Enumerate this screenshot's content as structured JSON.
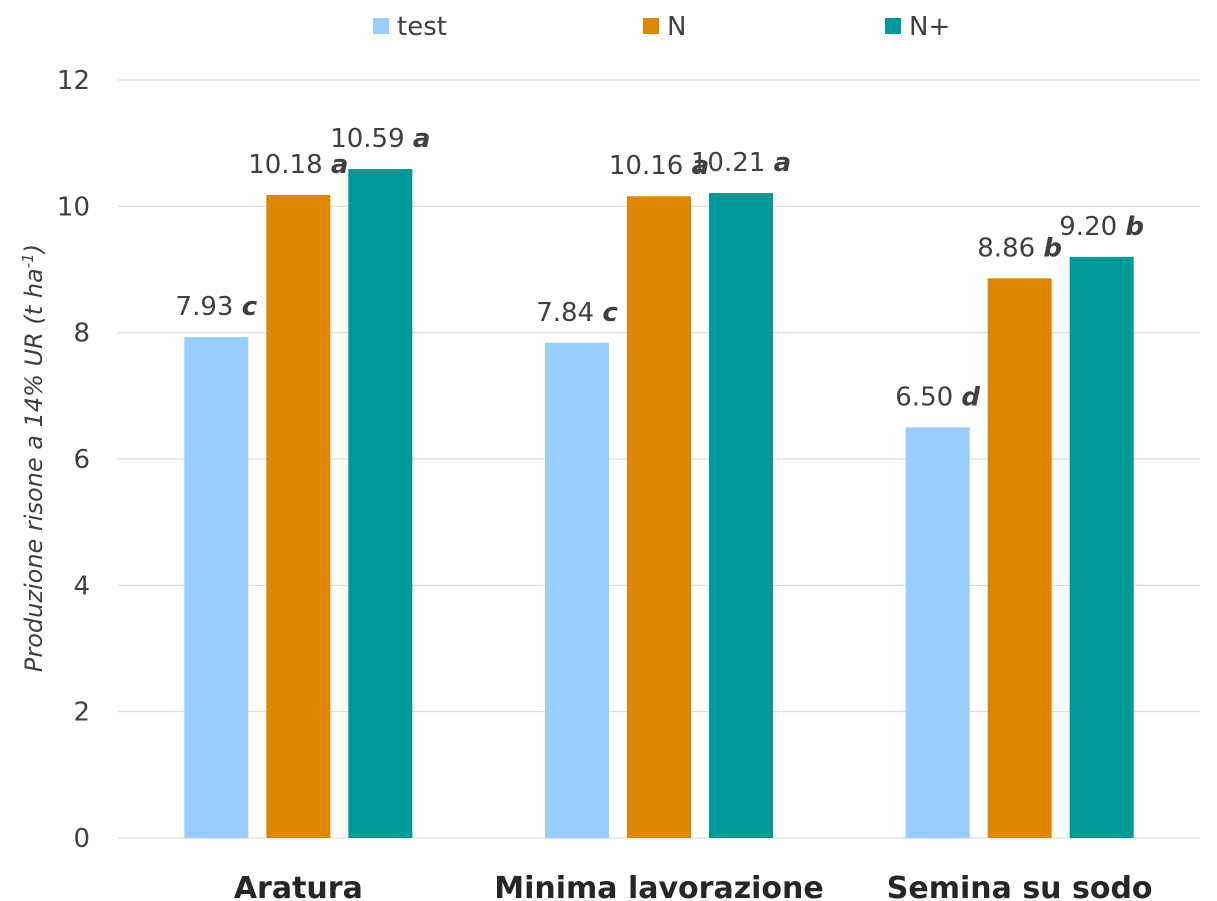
{
  "chart_data": {
    "type": "bar",
    "categories": [
      "Aratura",
      "Minima lavorazione",
      "Semina su sodo"
    ],
    "series": [
      {
        "name": "test",
        "color": "#99CCFF",
        "values": [
          7.93,
          7.84,
          6.5
        ],
        "labels": [
          "7.93",
          "7.84",
          "6.50"
        ],
        "letters": [
          "c",
          "c",
          "d"
        ]
      },
      {
        "name": "N",
        "color": "#E08700",
        "values": [
          10.18,
          10.16,
          8.86
        ],
        "labels": [
          "10.18",
          "10.16",
          "8.86"
        ],
        "letters": [
          "a",
          "a",
          "b"
        ]
      },
      {
        "name": "N+",
        "color": "#009999",
        "values": [
          10.59,
          10.21,
          9.2
        ],
        "labels": [
          "10.59",
          "10.21",
          "9.20"
        ],
        "letters": [
          "a",
          "a",
          "b"
        ]
      }
    ],
    "ylabel": {
      "main": "Produzione risone a 14% UR ",
      "unit": "(t ha",
      "superscript": "-1",
      "close": ")"
    },
    "ylim": [
      0,
      12
    ],
    "yticks": [
      0,
      2,
      4,
      6,
      8,
      10,
      12
    ],
    "grid": true,
    "legend_position": "top-center"
  }
}
